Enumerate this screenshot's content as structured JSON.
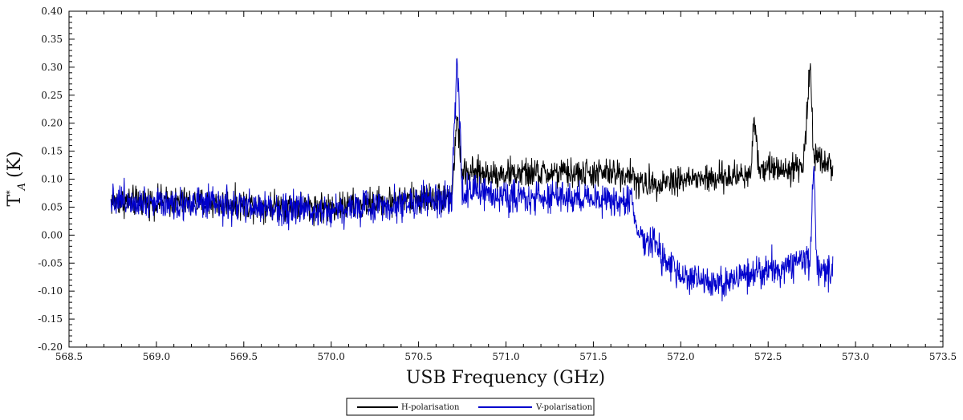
{
  "chart_data": {
    "type": "line",
    "title": "",
    "xlabel": "USB Frequency (GHz)",
    "ylabel": "T*A (K)",
    "ylabel_parts": {
      "main": "T",
      "sup": "*",
      "sub": "A",
      "unit": "(K)"
    },
    "xlim": [
      568.5,
      573.5
    ],
    "ylim": [
      -0.2,
      0.4
    ],
    "x_ticks": [
      568.5,
      569.0,
      569.5,
      570.0,
      570.5,
      571.0,
      571.5,
      572.0,
      572.5,
      573.0,
      573.5
    ],
    "x_tick_labels": [
      "568.5",
      "569.0",
      "569.5",
      "570.0",
      "570.5",
      "571.0",
      "571.5",
      "572.0",
      "572.5",
      "573.0",
      "573.5"
    ],
    "y_ticks": [
      -0.2,
      -0.15,
      -0.1,
      -0.05,
      0.0,
      0.05,
      0.1,
      0.15,
      0.2,
      0.25,
      0.3,
      0.35,
      0.4
    ],
    "y_tick_labels": [
      "-0.20",
      "-0.15",
      "-0.10",
      "-0.05",
      "0.00",
      "0.05",
      "0.10",
      "0.15",
      "0.20",
      "0.25",
      "0.30",
      "0.35",
      "0.40"
    ],
    "grid": false,
    "legend_position": "bottom-center",
    "series": [
      {
        "name": "H-polarisation",
        "color": "#000000",
        "noise": 0.025,
        "x": [
          568.74,
          569.0,
          569.5,
          570.0,
          570.5,
          570.69,
          570.72,
          570.75,
          571.0,
          571.5,
          571.72,
          571.75,
          572.0,
          572.2,
          572.4,
          572.42,
          572.45,
          572.7,
          572.74,
          572.76,
          572.87
        ],
        "y": [
          0.06,
          0.06,
          0.055,
          0.05,
          0.065,
          0.07,
          0.21,
          0.11,
          0.11,
          0.11,
          0.11,
          0.09,
          0.1,
          0.1,
          0.11,
          0.21,
          0.12,
          0.12,
          0.3,
          0.15,
          0.12
        ]
      },
      {
        "name": "V-polarisation",
        "color": "#0000cc",
        "noise": 0.028,
        "x": [
          568.74,
          569.0,
          569.5,
          570.0,
          570.5,
          570.69,
          570.72,
          570.75,
          571.0,
          571.5,
          571.72,
          571.75,
          571.85,
          571.9,
          572.0,
          572.2,
          572.5,
          572.74,
          572.76,
          572.78,
          572.87
        ],
        "y": [
          0.065,
          0.06,
          0.05,
          0.045,
          0.06,
          0.06,
          0.32,
          0.08,
          0.07,
          0.065,
          0.06,
          0.0,
          -0.01,
          -0.05,
          -0.07,
          -0.09,
          -0.06,
          -0.05,
          0.13,
          -0.06,
          -0.06
        ]
      }
    ]
  }
}
